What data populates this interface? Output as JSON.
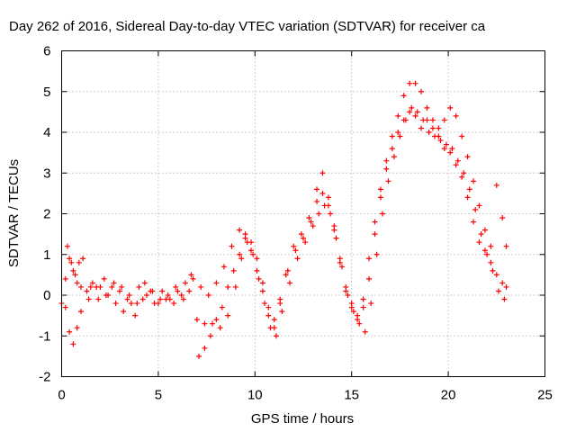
{
  "chart_data": {
    "type": "scatter",
    "title": "Day 262 of 2016, Sidereal Day-to-day VTEC variation (SDTVAR) for receiver ca",
    "xlabel": "GPS time / hours",
    "ylabel": "SDTVAR / TECUs",
    "xlim": [
      0,
      25
    ],
    "ylim": [
      -2,
      6
    ],
    "xticks": [
      0,
      5,
      10,
      15,
      20,
      25
    ],
    "xtick_labels": [
      "0",
      "5",
      "10",
      "15",
      "20",
      "25"
    ],
    "yticks": [
      -2,
      -1,
      0,
      1,
      2,
      3,
      4,
      5,
      6
    ],
    "ytick_labels": [
      "-2",
      "-1",
      "0",
      "1",
      "2",
      "3",
      "4",
      "5",
      "6"
    ],
    "grid": true,
    "marker": "+",
    "color": "#ff0000",
    "series": [
      {
        "x": [
          0.0,
          0.2,
          0.4,
          0.6,
          0.8,
          1.0,
          1.3,
          1.6,
          2.0,
          2.4,
          2.8,
          3.2,
          3.6,
          4.0,
          4.4,
          4.8,
          5.2,
          5.6,
          6.0,
          6.4,
          6.8,
          7.2,
          7.6,
          8.0,
          8.4,
          8.8,
          9.2,
          9.5,
          9.8,
          10.1,
          10.4,
          10.7,
          11.0,
          11.3,
          11.6,
          12.0,
          12.4,
          12.8,
          13.2,
          13.5,
          13.8,
          14.1,
          14.4,
          14.7,
          15.0,
          15.3,
          15.6,
          15.9,
          16.2,
          16.5,
          16.8,
          17.1,
          17.4,
          17.7,
          18.0,
          18.3,
          18.6,
          18.9,
          19.2,
          19.5,
          19.8,
          20.1,
          20.4,
          20.7,
          21.0,
          21.3,
          21.6,
          21.9,
          22.2,
          22.5,
          22.8,
          23.0
        ],
        "y": [
          -0.2,
          0.4,
          0.9,
          0.6,
          0.3,
          0.2,
          0.1,
          0.3,
          0.2,
          0.0,
          -0.2,
          -0.4,
          -0.2,
          0.2,
          0.0,
          -0.2,
          0.1,
          -0.1,
          0.1,
          0.3,
          0.4,
          0.2,
          0.0,
          0.3,
          0.7,
          1.2,
          1.6,
          1.5,
          1.1,
          0.6,
          0.1,
          -0.5,
          -0.8,
          -0.2,
          0.5,
          1.2,
          1.5,
          1.9,
          2.3,
          2.5,
          2.2,
          1.6,
          0.8,
          0.1,
          -0.3,
          -0.6,
          -0.3,
          0.4,
          1.5,
          2.4,
          3.1,
          3.6,
          4.0,
          4.3,
          4.5,
          4.4,
          4.1,
          4.3,
          4.1,
          3.9,
          3.6,
          3.5,
          3.2,
          2.9,
          2.4,
          1.8,
          1.3,
          1.1,
          0.8,
          0.5,
          0.3,
          0.2
        ]
      },
      {
        "x": [
          0.2,
          0.4,
          0.6,
          0.8,
          1.0,
          1.4,
          1.8,
          2.2,
          2.6,
          3.0,
          3.4,
          3.8,
          4.2,
          4.6,
          5.0,
          5.4,
          5.8,
          6.2,
          6.6,
          7.0,
          7.4,
          7.8,
          8.2,
          8.6,
          9.0,
          9.3,
          9.6,
          9.9,
          10.2,
          10.5,
          10.8,
          11.1,
          11.4,
          11.8,
          12.2,
          12.6,
          13.0,
          13.3,
          13.6,
          13.9,
          14.2,
          14.5,
          14.8,
          15.1,
          15.4,
          15.7,
          16.0,
          16.3,
          16.6,
          16.9,
          17.2,
          17.5,
          17.8,
          18.1,
          18.4,
          18.7,
          19.0,
          19.3,
          19.6,
          19.9,
          20.2,
          20.5,
          20.8,
          21.1,
          21.4,
          21.7,
          22.0,
          22.3,
          22.6,
          22.9
        ],
        "y": [
          -0.3,
          -0.9,
          -1.2,
          -0.8,
          -0.4,
          -0.1,
          0.2,
          0.4,
          0.2,
          0.1,
          -0.1,
          -0.5,
          -0.1,
          0.1,
          -0.2,
          -0.1,
          -0.2,
          0.0,
          0.1,
          -0.6,
          -0.7,
          -0.7,
          -0.8,
          -0.5,
          0.2,
          0.9,
          1.3,
          1.0,
          0.4,
          -0.2,
          -0.8,
          -1.0,
          -0.4,
          0.3,
          0.9,
          1.3,
          1.7,
          2.0,
          2.2,
          2.0,
          1.4,
          0.7,
          0.0,
          -0.4,
          -0.7,
          -0.9,
          -0.2,
          1.0,
          2.0,
          2.8,
          3.4,
          3.9,
          4.3,
          4.6,
          4.5,
          4.3,
          4.0,
          3.9,
          3.8,
          3.7,
          3.6,
          3.3,
          3.0,
          2.6,
          2.1,
          1.5,
          1.0,
          0.6,
          0.1,
          -0.1
        ]
      },
      {
        "x": [
          0.3,
          0.5,
          0.7,
          0.9,
          1.1,
          1.5,
          1.9,
          2.3,
          2.7,
          3.1,
          3.5,
          3.9,
          4.3,
          4.7,
          5.1,
          5.5,
          5.9,
          6.3,
          6.7,
          7.1,
          7.4,
          7.7,
          8.0,
          8.3,
          8.6,
          8.9,
          9.2,
          9.5,
          9.8,
          10.1,
          10.4,
          10.7,
          11.0,
          11.3,
          11.7,
          12.1,
          12.5,
          12.9,
          13.2,
          13.5,
          13.8,
          14.1,
          14.4,
          14.7,
          15.0,
          15.3,
          15.6,
          15.9,
          16.2,
          16.5,
          16.8,
          17.1,
          17.4,
          17.7,
          18.0,
          18.3,
          18.6,
          18.9,
          19.2,
          19.5,
          19.8,
          20.1,
          20.4,
          20.7,
          21.0,
          21.3,
          21.6,
          21.9,
          22.2,
          22.5,
          22.8,
          23.0
        ],
        "y": [
          1.2,
          0.8,
          0.5,
          0.8,
          0.9,
          0.2,
          -0.1,
          0.0,
          0.3,
          0.2,
          0.0,
          -0.2,
          0.3,
          0.1,
          -0.1,
          0.0,
          0.2,
          -0.1,
          0.5,
          -1.5,
          -1.3,
          -1.0,
          -0.6,
          -0.3,
          0.2,
          0.6,
          1.0,
          1.4,
          1.3,
          0.9,
          0.3,
          -0.3,
          -0.6,
          -0.1,
          0.6,
          1.1,
          1.4,
          1.8,
          2.6,
          3.0,
          2.4,
          1.7,
          0.9,
          0.2,
          -0.2,
          -0.5,
          -0.1,
          0.9,
          1.8,
          2.6,
          3.3,
          3.9,
          4.4,
          4.9,
          5.2,
          5.2,
          5.0,
          4.6,
          4.3,
          4.1,
          4.3,
          4.6,
          4.4,
          3.9,
          3.4,
          2.8,
          2.2,
          1.6,
          1.2,
          2.7,
          1.9,
          1.2
        ]
      }
    ]
  }
}
